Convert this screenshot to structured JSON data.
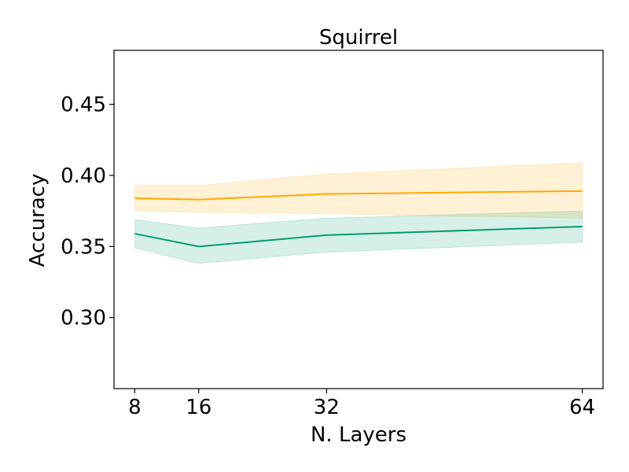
{
  "chart_data": {
    "type": "line",
    "title": "Squirrel",
    "xlabel": "N. Layers",
    "ylabel": "Accuracy",
    "x": [
      8,
      16,
      32,
      64
    ],
    "x_ticks": [
      8,
      16,
      32,
      64
    ],
    "x_tick_labels": [
      "8",
      "16",
      "32",
      "64"
    ],
    "xlim": [
      5.4,
      66.6
    ],
    "ylim": [
      0.25,
      0.488
    ],
    "y_ticks": [
      0.3,
      0.35,
      0.4,
      0.45
    ],
    "y_tick_labels": [
      "0.30",
      "0.35",
      "0.40",
      "0.45"
    ],
    "grid": false,
    "legend": "none",
    "series": [
      {
        "color": "#FFAA00",
        "values": [
          0.384,
          0.383,
          0.387,
          0.389
        ],
        "lower": [
          0.375,
          0.374,
          0.373,
          0.37
        ],
        "upper": [
          0.393,
          0.393,
          0.401,
          0.409
        ]
      },
      {
        "color": "#009E73",
        "values": [
          0.359,
          0.35,
          0.358,
          0.364
        ],
        "lower": [
          0.349,
          0.338,
          0.346,
          0.353
        ],
        "upper": [
          0.369,
          0.363,
          0.37,
          0.375
        ]
      }
    ]
  }
}
